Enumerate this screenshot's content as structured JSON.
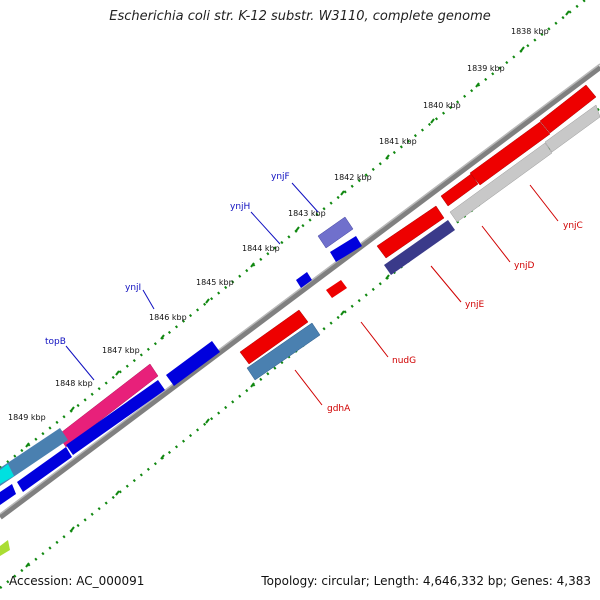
{
  "title": "Escherichia coli str. K-12 substr. W3110, complete genome",
  "accession_text": "Accession: AC_000091",
  "summary_text": "Topology: circular; Length: 4,646,332 bp; Genes: 4,383",
  "ticks": [
    "1838 kbp",
    "1839 kbp",
    "1840 kbp",
    "1841 kbp",
    "1842 kbp",
    "1843 kbp",
    "1844 kbp",
    "1845 kbp",
    "1846 kbp",
    "1847 kbp",
    "1848 kbp",
    "1849 kbp"
  ],
  "genes_upper": [
    "ynjF",
    "ynjH",
    "ynjI",
    "topB"
  ],
  "genes_lower": [
    "ynjC",
    "ynjD",
    "ynjE",
    "nudG",
    "gdhA"
  ],
  "colors": {
    "backbone": "#808080",
    "red": "#ee0000",
    "blue": "#0000dd",
    "magenta": "#e8207a",
    "steel": "#4a80b0",
    "purple": "#7070cc",
    "navy": "#3a3a8a",
    "silver": "#c8c8c8",
    "tick_dots": "#118811",
    "label_blue": "#1010c0",
    "label_red": "#d00000"
  }
}
